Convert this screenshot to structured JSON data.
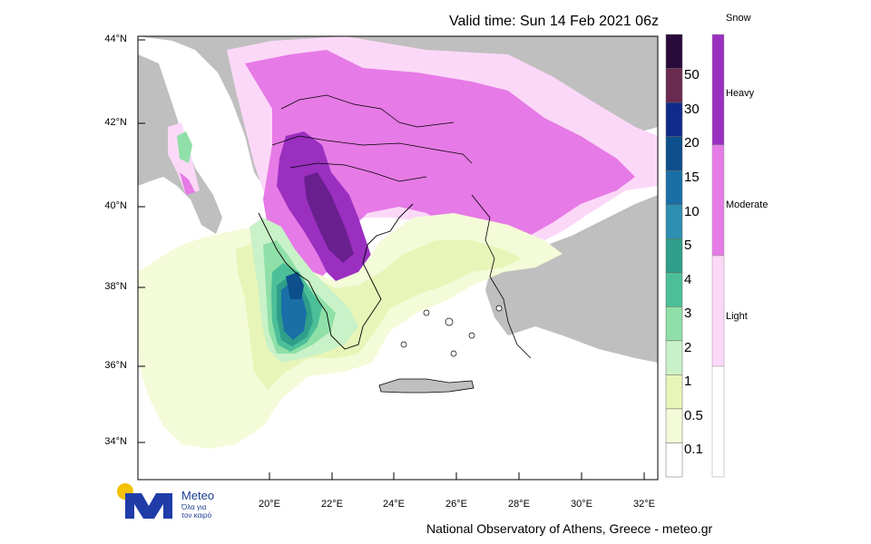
{
  "header": {
    "valid_time": "Valid time: Sun 14 Feb 2021 06z"
  },
  "footer": {
    "credit": "National Observatory of Athens, Greece - meteo.gr"
  },
  "map": {
    "lat_labels": [
      "44°N",
      "42°N",
      "40°N",
      "38°N",
      "36°N",
      "34°N"
    ],
    "lon_labels": [
      "20°E",
      "22°E",
      "24°E",
      "26°E",
      "28°E",
      "30°E",
      "32°E"
    ]
  },
  "precip_legend": {
    "labels": [
      "50",
      "30",
      "20",
      "15",
      "10",
      "5",
      "4",
      "3",
      "2",
      "1",
      "0.5",
      "0.1"
    ],
    "colors": [
      "#2a0a3a",
      "#6b2a50",
      "#102a8a",
      "#0d4f8c",
      "#1a6fa6",
      "#2f8fb0",
      "#2f9e8a",
      "#4cbf98",
      "#8fe0a8",
      "#c9f2c8",
      "#e8f5b8",
      "#f4fbd8",
      "#ffffff"
    ]
  },
  "snow_legend": {
    "title": "Snow",
    "labels": [
      "Heavy",
      "Moderate",
      "Light"
    ],
    "colors": [
      "#9a2fc0",
      "#e67ae6",
      "#fcd8f8",
      "#ffffff"
    ]
  },
  "logo": {
    "name": "Meteo",
    "tagline_1": "Όλα για",
    "tagline_2": "τον καιρό"
  }
}
